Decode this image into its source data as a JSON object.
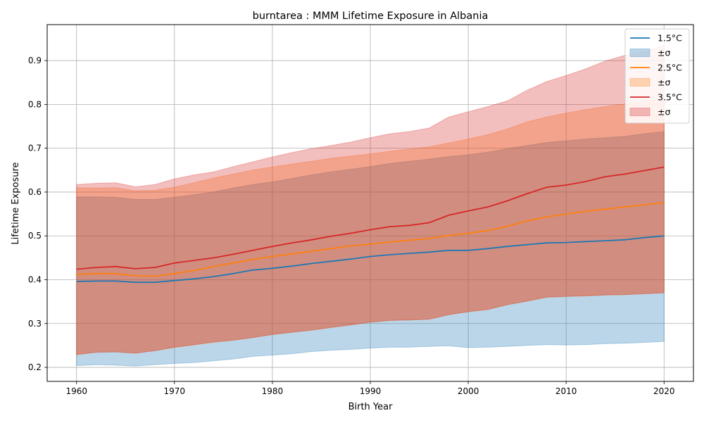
{
  "chart_data": {
    "type": "line",
    "title": "burntarea : MMM Lifetime Exposure in Albania",
    "xlabel": "Birth Year",
    "ylabel": "Lifetime Exposure",
    "xlim": [
      1957,
      2023
    ],
    "ylim": [
      0.168,
      0.982
    ],
    "x_ticks": [
      1960,
      1970,
      1980,
      1990,
      2000,
      2010,
      2020
    ],
    "y_ticks": [
      0.2,
      0.3,
      0.4,
      0.5,
      0.6,
      0.7,
      0.8,
      0.9
    ],
    "grid": true,
    "legend_position": "top-right",
    "x": [
      1960,
      1962,
      1964,
      1966,
      1968,
      1970,
      1972,
      1974,
      1976,
      1978,
      1980,
      1982,
      1984,
      1986,
      1988,
      1990,
      1992,
      1994,
      1996,
      1998,
      2000,
      2002,
      2004,
      2006,
      2008,
      2010,
      2012,
      2014,
      2016,
      2018,
      2020
    ],
    "series": [
      {
        "name": "1.5°C",
        "band_label": "±σ",
        "color": "#1f77b4",
        "band_color": "#a6c8e3",
        "mean": [
          0.396,
          0.397,
          0.397,
          0.394,
          0.394,
          0.398,
          0.402,
          0.407,
          0.414,
          0.422,
          0.426,
          0.431,
          0.437,
          0.442,
          0.447,
          0.453,
          0.457,
          0.46,
          0.463,
          0.467,
          0.467,
          0.471,
          0.476,
          0.48,
          0.484,
          0.485,
          0.487,
          0.489,
          0.491,
          0.496,
          0.5
        ],
        "lower": [
          0.204,
          0.206,
          0.205,
          0.203,
          0.206,
          0.209,
          0.211,
          0.215,
          0.219,
          0.225,
          0.228,
          0.231,
          0.236,
          0.239,
          0.241,
          0.244,
          0.246,
          0.246,
          0.248,
          0.249,
          0.245,
          0.246,
          0.248,
          0.25,
          0.252,
          0.251,
          0.252,
          0.254,
          0.255,
          0.257,
          0.259
        ],
        "upper": [
          0.589,
          0.589,
          0.588,
          0.583,
          0.583,
          0.588,
          0.594,
          0.6,
          0.609,
          0.617,
          0.623,
          0.631,
          0.639,
          0.646,
          0.652,
          0.658,
          0.665,
          0.67,
          0.675,
          0.681,
          0.685,
          0.691,
          0.699,
          0.706,
          0.713,
          0.717,
          0.721,
          0.724,
          0.727,
          0.733,
          0.738
        ]
      },
      {
        "name": "2.5°C",
        "band_label": "±σ",
        "color": "#ff7f0e",
        "band_color": "#ffc99a",
        "mean": [
          0.412,
          0.414,
          0.414,
          0.409,
          0.408,
          0.414,
          0.421,
          0.43,
          0.438,
          0.446,
          0.453,
          0.459,
          0.465,
          0.471,
          0.477,
          0.481,
          0.486,
          0.49,
          0.494,
          0.501,
          0.506,
          0.512,
          0.522,
          0.534,
          0.543,
          0.55,
          0.556,
          0.561,
          0.566,
          0.571,
          0.576
        ],
        "lower": [
          0.228,
          0.235,
          0.236,
          0.233,
          0.238,
          0.245,
          0.251,
          0.257,
          0.262,
          0.268,
          0.275,
          0.28,
          0.285,
          0.291,
          0.297,
          0.303,
          0.307,
          0.308,
          0.31,
          0.32,
          0.327,
          0.332,
          0.343,
          0.351,
          0.36,
          0.362,
          0.363,
          0.365,
          0.366,
          0.368,
          0.37
        ],
        "upper": [
          0.61,
          0.609,
          0.61,
          0.603,
          0.604,
          0.611,
          0.621,
          0.632,
          0.641,
          0.65,
          0.657,
          0.664,
          0.67,
          0.677,
          0.682,
          0.687,
          0.693,
          0.698,
          0.703,
          0.712,
          0.721,
          0.731,
          0.744,
          0.76,
          0.771,
          0.78,
          0.788,
          0.795,
          0.801,
          0.808,
          0.815
        ]
      },
      {
        "name": "3.5°C",
        "band_label": "±σ",
        "color": "#d62728",
        "band_color": "#e89395",
        "mean": [
          0.424,
          0.428,
          0.43,
          0.425,
          0.428,
          0.438,
          0.444,
          0.45,
          0.458,
          0.467,
          0.476,
          0.484,
          0.491,
          0.499,
          0.506,
          0.514,
          0.521,
          0.524,
          0.53,
          0.547,
          0.557,
          0.566,
          0.58,
          0.596,
          0.611,
          0.616,
          0.624,
          0.635,
          0.641,
          0.649,
          0.657
        ],
        "lower": [
          0.23,
          0.234,
          0.235,
          0.232,
          0.238,
          0.246,
          0.252,
          0.258,
          0.262,
          0.268,
          0.275,
          0.28,
          0.285,
          0.291,
          0.297,
          0.303,
          0.307,
          0.308,
          0.31,
          0.32,
          0.327,
          0.332,
          0.343,
          0.351,
          0.36,
          0.362,
          0.363,
          0.365,
          0.366,
          0.368,
          0.37
        ],
        "upper": [
          0.617,
          0.62,
          0.621,
          0.612,
          0.617,
          0.63,
          0.639,
          0.646,
          0.658,
          0.669,
          0.68,
          0.69,
          0.699,
          0.706,
          0.714,
          0.724,
          0.733,
          0.738,
          0.746,
          0.771,
          0.783,
          0.795,
          0.808,
          0.832,
          0.852,
          0.866,
          0.881,
          0.899,
          0.912,
          0.921,
          0.935
        ]
      }
    ]
  }
}
